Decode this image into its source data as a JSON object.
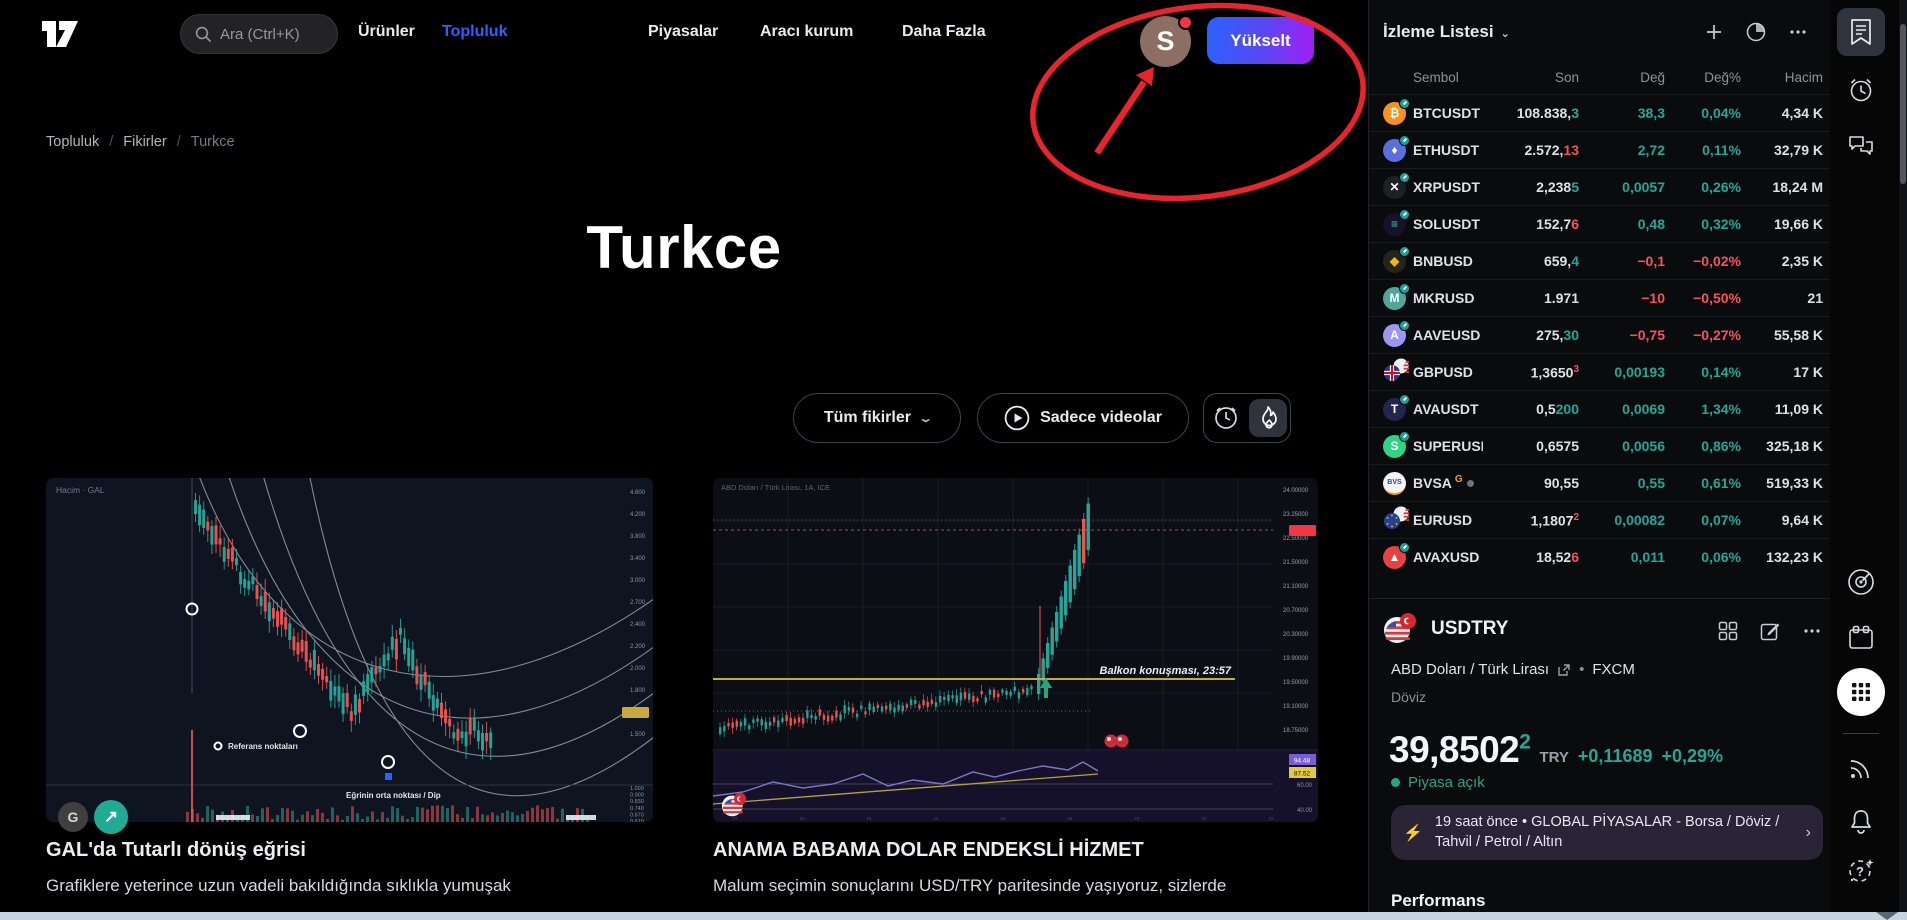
{
  "nav": {
    "search_placeholder": "Ara (Ctrl+K)",
    "items": [
      {
        "label": "Ürünler",
        "active": false
      },
      {
        "label": "Topluluk",
        "active": true
      },
      {
        "label": "Piyasalar",
        "active": false
      },
      {
        "label": "Aracı kurum",
        "active": false
      },
      {
        "label": "Daha Fazla",
        "active": false
      }
    ],
    "avatar_initial": "S",
    "upgrade_label": "Yükselt"
  },
  "colors": {
    "accent_blue": "#2962ff",
    "positive": "#1ea99a",
    "negative": "#f7525f",
    "annotation_red": "#e9242b",
    "upgrade_gradient": [
      "#2962ff",
      "#a31df5"
    ]
  },
  "breadcrumb": {
    "items": [
      "Topluluk",
      "Fikirler",
      "Turkce"
    ]
  },
  "page": {
    "title": "Turkce"
  },
  "filters": {
    "all_ideas_label": "Tüm fikirler",
    "videos_only_label": "Sadece videolar"
  },
  "cards": [
    {
      "title": "GAL'da Tutarlı dönüş eğrisi",
      "description": "Grafiklere yeterince uzun vadeli bakıldığında sıklıkla yumuşak",
      "chart_label": "Hacim · GAL",
      "annotation_ref": "Referans noktaları",
      "annotation_mid": "Eğrinin orta noktası / Dip",
      "author_initial": "G",
      "boost_icon": "↗",
      "axis": [
        "4.600",
        "4.200",
        "3.800",
        "3.400",
        "3.000",
        "2.700",
        "2.400",
        "2.200",
        "2.000",
        "1.800",
        "1.650",
        "1.500"
      ],
      "vol_axis": [
        "1.000",
        "0.900",
        "0.830",
        "0.740",
        "0.670",
        "0.610"
      ]
    },
    {
      "title": "ANAMA BABAMA DOLAR ENDEKSLİ HİZMET",
      "description": "Malum seçimin sonuçlarını USD/TRY paritesinde yaşıyoruz, sizlerde",
      "chart_label": "ABD Doları / Türk Lirası, 1A, ICE",
      "annotation_event": "Balkon konuşması, 23:57",
      "axis": [
        "24.00000",
        "23.25000",
        "22.50000",
        "21.50000",
        "21.10000",
        "20.70000",
        "20.30000",
        "19.90000",
        "19.50000",
        "19.10000",
        "18.75000"
      ],
      "sub_tags": {
        "purple": "94.48",
        "yellow": "87.52"
      },
      "sub_axis": [
        "60.00",
        "40.00"
      ]
    }
  ],
  "watchlist": {
    "title": "İzleme Listesi",
    "columns": [
      "Sembol",
      "Son",
      "Değ",
      "Değ%",
      "Hacim"
    ],
    "rows": [
      {
        "flag": true,
        "icon": "btc",
        "bg": "#f7931a",
        "glyph": "₿",
        "fg": "#fff",
        "badge": true,
        "symbol": "BTCUSDT",
        "pre": "108.838,",
        "suf": "3",
        "sufdir": "up",
        "chg": "38,3",
        "pct": "0,04%",
        "dir": "up",
        "vol": "4,34 K"
      },
      {
        "flag": true,
        "icon": "eth",
        "bg": "#5b6ee0",
        "glyph": "♦",
        "fg": "#fff",
        "badge": true,
        "symbol": "ETHUSDT",
        "pre": "2.572,",
        "suf": "13",
        "sufdir": "dn",
        "chg": "2,72",
        "pct": "0,11%",
        "dir": "up",
        "vol": "32,79 K"
      },
      {
        "flag": true,
        "icon": "xrp",
        "bg": "#1c2126",
        "glyph": "✕",
        "fg": "#fff",
        "badge": true,
        "symbol": "XRPUSDT",
        "pre": "2,238",
        "suf": "5",
        "sufdir": "up",
        "chg": "0,0057",
        "pct": "0,26%",
        "dir": "up",
        "vol": "18,24 M"
      },
      {
        "flag": true,
        "icon": "sol",
        "bg": "#191129",
        "glyph": "≡",
        "fg": "#2dd8a7",
        "badge": true,
        "symbol": "SOLUSDT",
        "pre": "152,7",
        "suf": "6",
        "sufdir": "dn",
        "chg": "0,48",
        "pct": "0,32%",
        "dir": "up",
        "vol": "19,66 K"
      },
      {
        "flag": true,
        "icon": "bnb",
        "bg": "#25241a",
        "glyph": "◆",
        "fg": "#f0b90b",
        "badge": true,
        "symbol": "BNBUSD",
        "pre": "659,",
        "suf": "4",
        "sufdir": "up",
        "chg": "−0,1",
        "pct": "−0,02%",
        "dir": "dn",
        "vol": "2,35 K"
      },
      {
        "flag": true,
        "icon": "mkr",
        "bg": "#4fa79c",
        "glyph": "M",
        "fg": "#fff",
        "badge": true,
        "symbol": "MKRUSD",
        "pre": "1.971",
        "suf": "",
        "sufdir": "up",
        "chg": "−10",
        "pct": "−0,50%",
        "dir": "dn",
        "vol": "21"
      },
      {
        "flag": false,
        "icon": "aave",
        "bg": "#9b97f3",
        "glyph": "A",
        "fg": "#fff",
        "badge": true,
        "symbol": "AAVEUSD",
        "pre": "275,",
        "suf": "30",
        "sufdir": "up",
        "chg": "−0,75",
        "pct": "−0,27%",
        "dir": "dn",
        "vol": "55,58 K"
      },
      {
        "flag": true,
        "icon": "fx-gbp",
        "bg": "",
        "glyph": "",
        "fg": "",
        "badge": false,
        "symbol": "GBPUSD",
        "pre": "1,3650",
        "suf": "3",
        "sufsmall": true,
        "sufdir": "dn",
        "chg": "0,00193",
        "pct": "0,14%",
        "dir": "up",
        "vol": "17 K"
      },
      {
        "flag": true,
        "icon": "ava",
        "bg": "#23244f",
        "glyph": "T",
        "fg": "#fff",
        "badge": true,
        "symbol": "AVAUSDT",
        "pre": "0,5",
        "suf": "200",
        "sufdir": "up",
        "chg": "0,0069",
        "pct": "1,34%",
        "dir": "up",
        "vol": "11,09 K"
      },
      {
        "flag": false,
        "icon": "super",
        "bg": "#2fd483",
        "glyph": "S",
        "fg": "#fff",
        "badge": true,
        "symbol": "SUPERUSDT",
        "pre": "0,6575",
        "suf": "",
        "sufdir": "up",
        "chg": "0,0056",
        "pct": "0,86%",
        "dir": "up",
        "vol": "325,18 K"
      },
      {
        "flag": false,
        "icon": "bvsa",
        "bg": "#f3f4f6",
        "glyph": "BVS",
        "fg": "#1a4bbf",
        "badge": false,
        "gbadge": "G",
        "gdot": true,
        "symbol": "BVSA",
        "pre": "90,55",
        "suf": "",
        "sufdir": "up",
        "chg": "0,55",
        "pct": "0,61%",
        "dir": "up",
        "vol": "519,33 K"
      },
      {
        "flag": true,
        "icon": "fx-eur",
        "bg": "",
        "glyph": "",
        "fg": "",
        "badge": false,
        "symbol": "EURUSD",
        "pre": "1,1807",
        "suf": "2",
        "sufsmall": true,
        "sufdir": "dn",
        "chg": "0,00082",
        "pct": "0,07%",
        "dir": "up",
        "vol": "9,64 K"
      },
      {
        "flag": true,
        "icon": "avax",
        "bg": "#e84142",
        "glyph": "▲",
        "fg": "#fff",
        "badge": true,
        "symbol": "AVAXUSD",
        "pre": "18,52",
        "suf": "6",
        "sufdir": "dn",
        "chg": "0,011",
        "pct": "0,06%",
        "dir": "up",
        "vol": "132,23 K"
      }
    ]
  },
  "symbol_detail": {
    "symbol": "USDTRY",
    "description": "ABD Doları / Türk Lirası",
    "exchange": "FXCM",
    "market_type": "Döviz",
    "price": "39,8502",
    "price_sup": "2",
    "currency": "TRY",
    "change": "+0,11689",
    "change_pct": "+0,29%",
    "market_status": "Piyasa açık",
    "news": {
      "time": "19 saat önce",
      "headline": "GLOBAL PİYASALAR - Borsa / Döviz / Tahvil / Petrol / Altın"
    },
    "performance_title": "Performans"
  },
  "right_toolbar": [
    "watchlist",
    "alerts",
    "chat",
    "screener",
    "calendar",
    "apps",
    "streams",
    "notifications",
    "help"
  ]
}
